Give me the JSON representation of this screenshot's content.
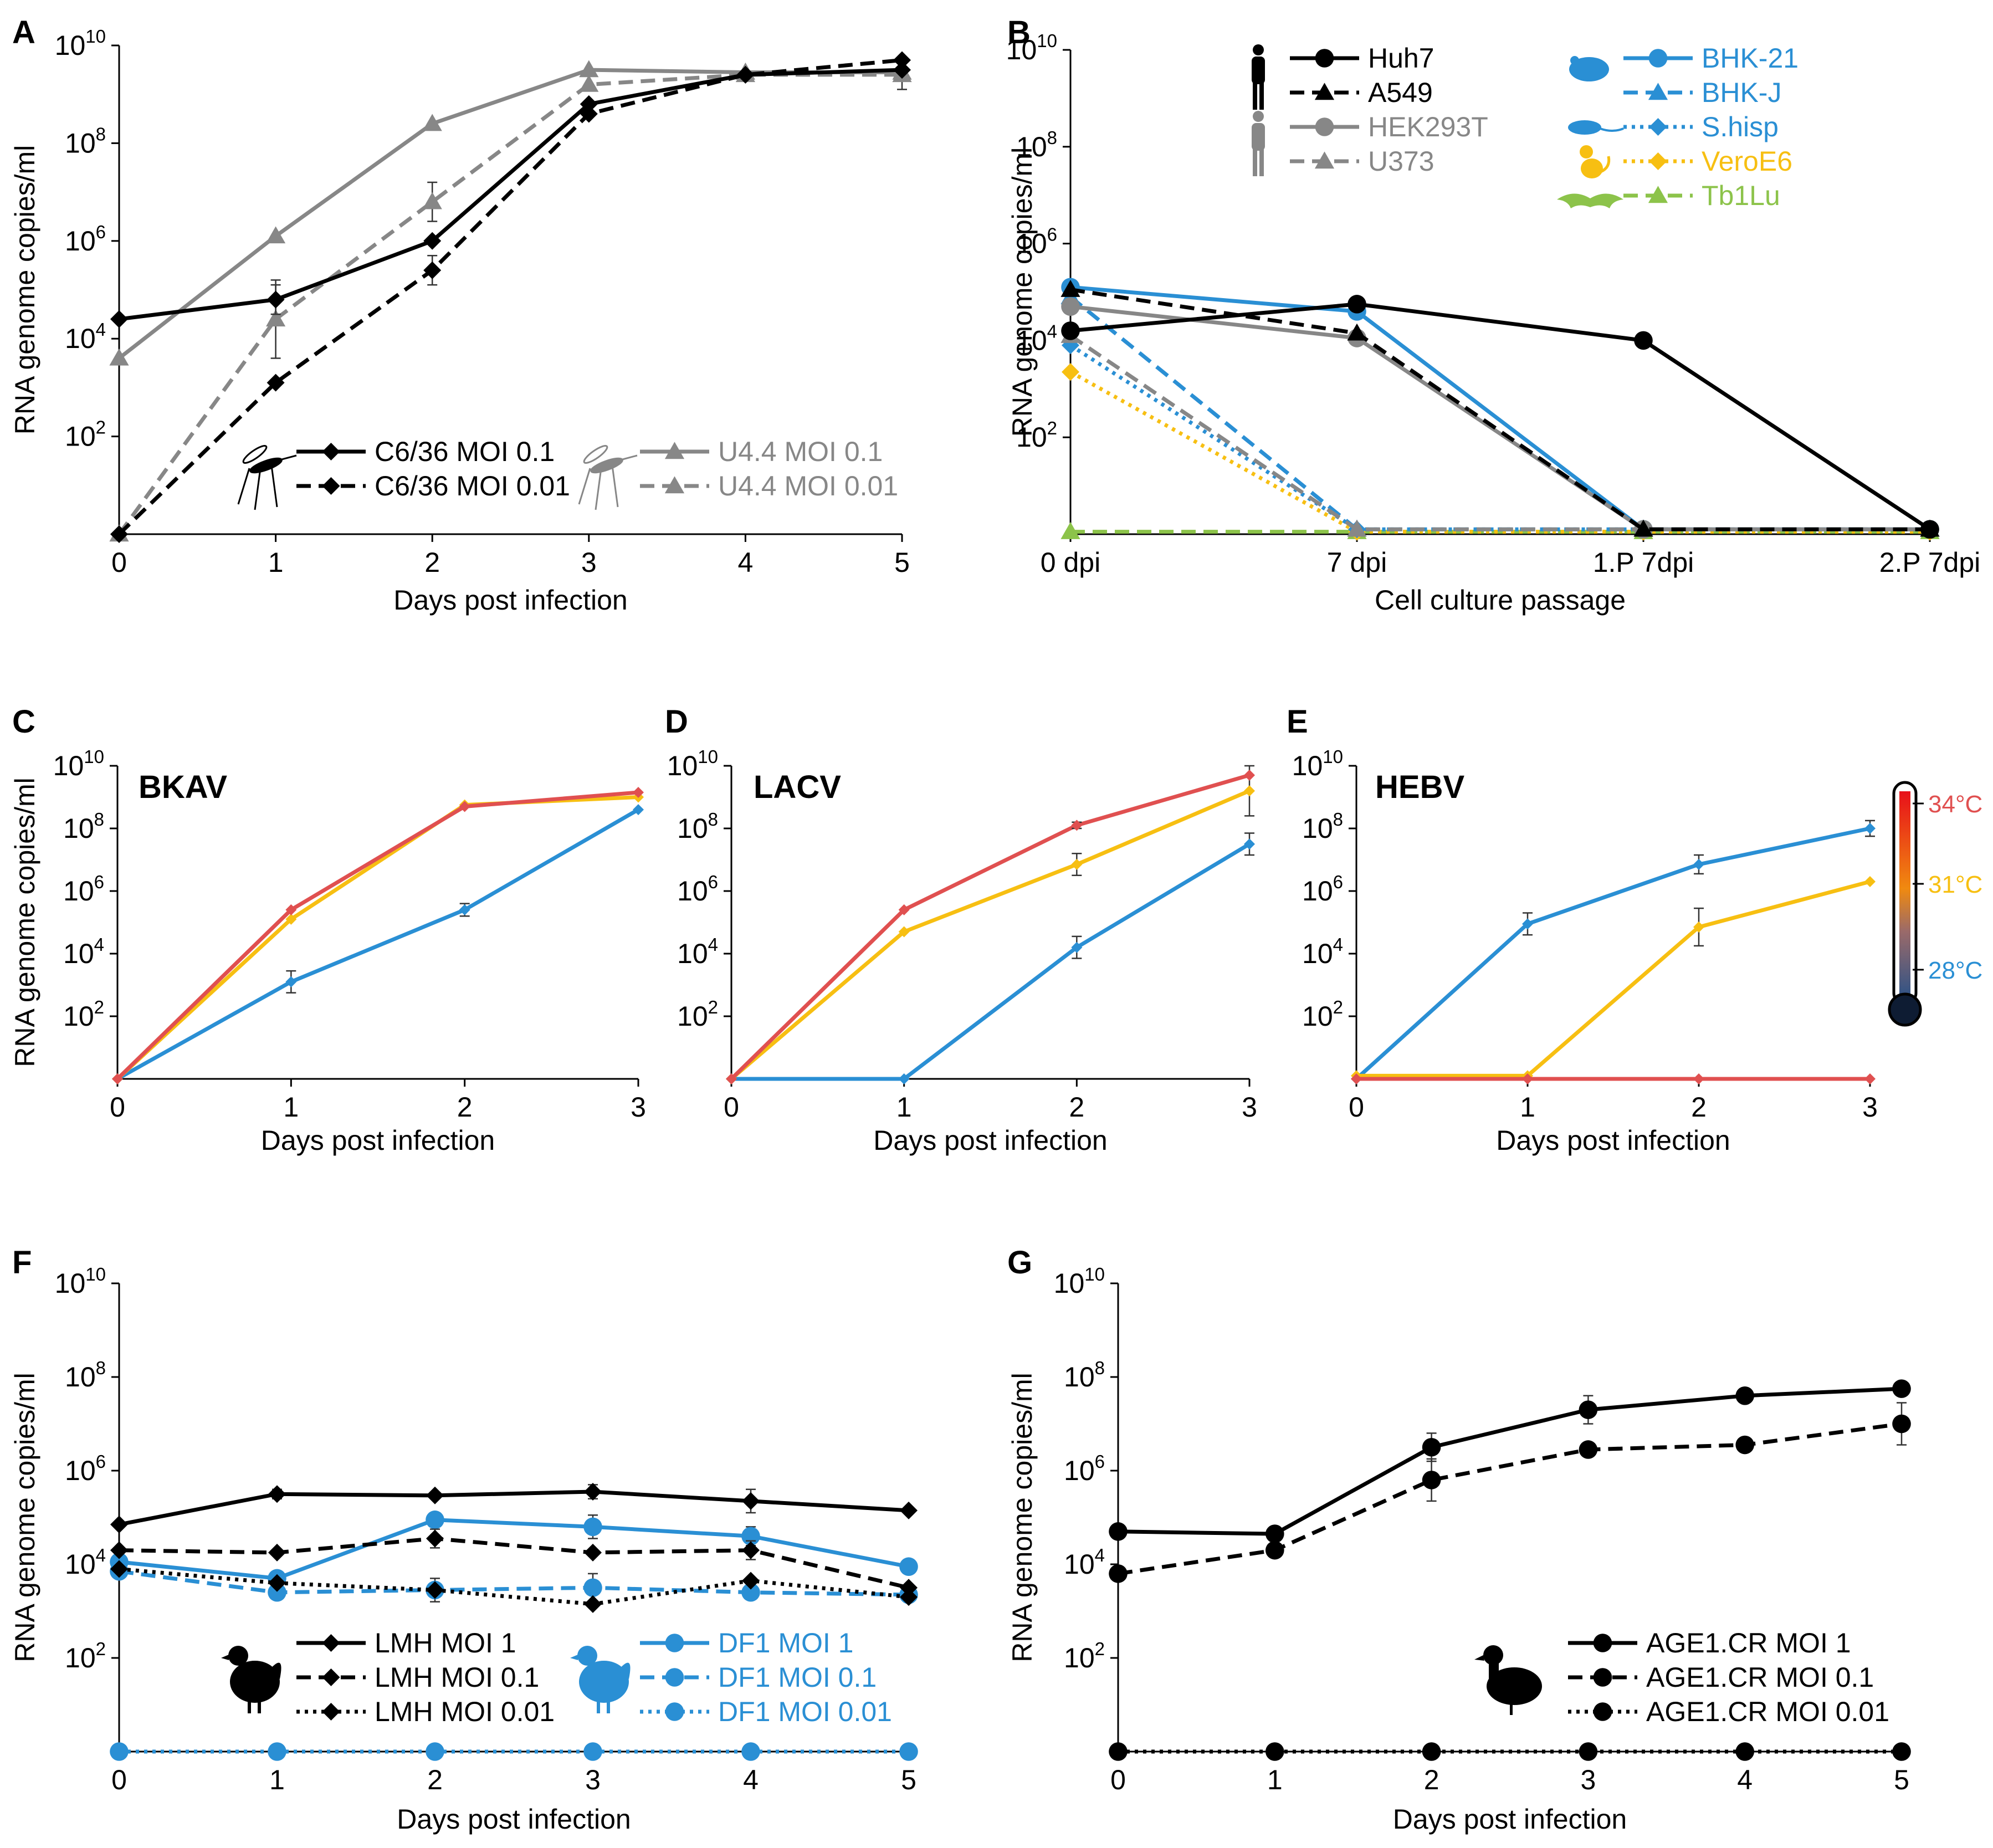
{
  "colors": {
    "black": "#000000",
    "gray": "#878787",
    "blue": "#2a8fd4",
    "yellow": "#f7bf12",
    "green": "#8cc34a",
    "red": "#e05050"
  },
  "chart_data": [
    {
      "id": "A",
      "panel_label": "A",
      "type": "line",
      "title": "",
      "xlabel": "Days post infection",
      "ylabel": "RNA genome copies/ml",
      "x_categories": [
        "0",
        "1",
        "2",
        "3",
        "4",
        "5"
      ],
      "y_scale": "log10",
      "ylim_exp": [
        0,
        10
      ],
      "y_tick_exponents": [
        2,
        4,
        6,
        8,
        10
      ],
      "series": [
        {
          "name": "C6/36 MOI 0.1",
          "color": "black",
          "dash": "solid",
          "marker": "diamond",
          "values_log10": [
            4.4,
            4.8,
            6.0,
            8.8,
            9.4,
            9.5
          ],
          "err_log10": [
            0,
            0.3,
            0,
            0,
            0,
            0
          ]
        },
        {
          "name": "C6/36 MOI 0.01",
          "color": "black",
          "dash": "dashed",
          "marker": "diamond",
          "values_log10": [
            0,
            3.1,
            5.4,
            8.6,
            9.4,
            9.7
          ],
          "err_log10": [
            0,
            0,
            0.3,
            0,
            0,
            0
          ]
        },
        {
          "name": "U4.4 MOI 0.1",
          "color": "gray",
          "dash": "solid",
          "marker": "triangle",
          "values_log10": [
            3.6,
            6.1,
            8.4,
            9.5,
            9.45,
            9.45
          ],
          "err_log10": [
            0,
            0,
            0,
            0,
            0,
            0
          ]
        },
        {
          "name": "U4.4 MOI 0.01",
          "color": "gray",
          "dash": "dashed",
          "marker": "triangle",
          "values_log10": [
            0,
            4.4,
            6.8,
            9.2,
            9.4,
            9.4
          ],
          "err_log10": [
            0,
            0.8,
            0.4,
            0,
            0,
            0.3
          ]
        }
      ]
    },
    {
      "id": "B",
      "panel_label": "B",
      "type": "line",
      "title": "",
      "xlabel": "Cell culture passage",
      "ylabel": "RNA genome copies/ml",
      "x_categories": [
        "0 dpi",
        "7 dpi",
        "1.P 7dpi",
        "2.P 7dpi"
      ],
      "y_scale": "log10",
      "ylim_exp": [
        0,
        10
      ],
      "y_tick_exponents": [
        2,
        4,
        6,
        8,
        10
      ],
      "series": [
        {
          "name": "Huh7",
          "color": "black",
          "dash": "solid",
          "marker": "circle",
          "values_log10": [
            4.2,
            4.75,
            4.0,
            0.1
          ]
        },
        {
          "name": "A549",
          "color": "black",
          "dash": "dashed",
          "marker": "triangle",
          "values_log10": [
            5.05,
            4.15,
            0.1,
            0.1
          ]
        },
        {
          "name": "HEK293T",
          "color": "gray",
          "dash": "solid",
          "marker": "circle",
          "values_log10": [
            4.7,
            4.05,
            0.1,
            0.1
          ]
        },
        {
          "name": "U373",
          "color": "gray",
          "dash": "dashed",
          "marker": "triangle",
          "values_log10": [
            4.1,
            0.1,
            0.1,
            0.1
          ]
        },
        {
          "name": "BHK-21",
          "color": "blue",
          "dash": "solid",
          "marker": "circle",
          "values_log10": [
            5.1,
            4.6,
            0.1,
            0.1
          ]
        },
        {
          "name": "BHK-J",
          "color": "blue",
          "dash": "dashed",
          "marker": "triangle",
          "values_log10": [
            4.9,
            0.1,
            0.1,
            0.1
          ]
        },
        {
          "name": "S.hisp",
          "color": "blue",
          "dash": "dotted",
          "marker": "diamond",
          "values_log10": [
            3.9,
            0.1,
            0.1,
            0.1
          ]
        },
        {
          "name": "VeroE6",
          "color": "yellow",
          "dash": "dotted",
          "marker": "diamond",
          "values_log10": [
            3.35,
            0.05,
            0.05,
            0.05
          ]
        },
        {
          "name": "Tb1Lu",
          "color": "green",
          "dash": "dashed",
          "marker": "triangle",
          "values_log10": [
            0.05,
            0.05,
            0.05,
            0.05
          ]
        }
      ]
    },
    {
      "id": "C",
      "panel_label": "C",
      "type": "line",
      "title": "BKAV",
      "xlabel": "Days post infection",
      "ylabel": "RNA genome copies/ml",
      "x_categories": [
        "0",
        "1",
        "2",
        "3"
      ],
      "y_scale": "log10",
      "ylim_exp": [
        0,
        10
      ],
      "y_tick_exponents": [
        2,
        4,
        6,
        8,
        10
      ],
      "series": [
        {
          "name": "34°C",
          "color": "red",
          "dash": "solid",
          "marker": "diamond",
          "values_log10": [
            0,
            5.4,
            8.7,
            9.15
          ],
          "err_log10": [
            0,
            0,
            0,
            0
          ]
        },
        {
          "name": "31°C",
          "color": "yellow",
          "dash": "solid",
          "marker": "diamond",
          "values_log10": [
            0,
            5.1,
            8.75,
            9.0
          ],
          "err_log10": [
            0,
            0,
            0,
            0
          ]
        },
        {
          "name": "28°C",
          "color": "blue",
          "dash": "solid",
          "marker": "diamond",
          "values_log10": [
            0,
            3.1,
            5.4,
            8.6
          ],
          "err_log10": [
            0,
            0.35,
            0.2,
            0
          ]
        }
      ]
    },
    {
      "id": "D",
      "panel_label": "D",
      "type": "line",
      "title": "LACV",
      "xlabel": "Days post infection",
      "ylabel": "RNA genome copies/ml",
      "x_categories": [
        "0",
        "1",
        "2",
        "3"
      ],
      "y_scale": "log10",
      "ylim_exp": [
        0,
        10
      ],
      "y_tick_exponents": [
        2,
        4,
        6,
        8,
        10
      ],
      "series": [
        {
          "name": "34°C",
          "color": "red",
          "dash": "solid",
          "marker": "diamond",
          "values_log10": [
            0,
            5.4,
            8.1,
            9.7
          ],
          "err_log10": [
            0,
            0,
            0.1,
            0
          ]
        },
        {
          "name": "31°C",
          "color": "yellow",
          "dash": "solid",
          "marker": "diamond",
          "values_log10": [
            0,
            4.7,
            6.85,
            9.2
          ],
          "err_log10": [
            0,
            0,
            0.35,
            0.8
          ]
        },
        {
          "name": "28°C",
          "color": "blue",
          "dash": "solid",
          "marker": "diamond",
          "values_log10": [
            0,
            0,
            4.2,
            7.5
          ],
          "err_log10": [
            0,
            0,
            0.35,
            0.35
          ]
        }
      ]
    },
    {
      "id": "E",
      "panel_label": "E",
      "type": "line",
      "title": "HEBV",
      "xlabel": "Days post infection",
      "ylabel": "RNA genome copies/ml",
      "x_categories": [
        "0",
        "1",
        "2",
        "3"
      ],
      "y_scale": "log10",
      "ylim_exp": [
        0,
        10
      ],
      "y_tick_exponents": [
        2,
        4,
        6,
        8,
        10
      ],
      "series": [
        {
          "name": "34°C",
          "color": "red",
          "dash": "solid",
          "marker": "diamond",
          "values_log10": [
            0,
            0,
            0,
            0
          ],
          "err_log10": [
            0,
            0,
            0,
            0
          ]
        },
        {
          "name": "31°C",
          "color": "yellow",
          "dash": "solid",
          "marker": "diamond",
          "values_log10": [
            0.1,
            0.1,
            4.85,
            6.3
          ],
          "err_log10": [
            0,
            0,
            0.6,
            0
          ]
        },
        {
          "name": "28°C",
          "color": "blue",
          "dash": "solid",
          "marker": "diamond",
          "values_log10": [
            0,
            4.95,
            6.85,
            8.0
          ],
          "err_log10": [
            0,
            0.35,
            0.3,
            0.25
          ]
        }
      ]
    },
    {
      "id": "F",
      "panel_label": "F",
      "type": "line",
      "title": "",
      "xlabel": "Days post infection",
      "ylabel": "RNA genome copies/ml",
      "x_categories": [
        "0",
        "1",
        "2",
        "3",
        "4",
        "5"
      ],
      "y_scale": "log10",
      "ylim_exp": [
        0,
        10
      ],
      "y_tick_exponents": [
        2,
        4,
        6,
        8,
        10
      ],
      "series": [
        {
          "name": "LMH MOI 1",
          "color": "black",
          "dash": "solid",
          "marker": "diamond",
          "values_log10": [
            4.85,
            5.5,
            5.47,
            5.55,
            5.35,
            5.15
          ],
          "err_log10": [
            0,
            0.1,
            0,
            0.15,
            0.25,
            0
          ]
        },
        {
          "name": "LMH MOI 0.1",
          "color": "black",
          "dash": "dashed",
          "marker": "diamond",
          "values_log10": [
            4.3,
            4.25,
            4.55,
            4.25,
            4.3,
            3.5
          ],
          "err_log10": [
            0,
            0,
            0.2,
            0,
            0.2,
            0
          ]
        },
        {
          "name": "LMH MOI 0.01",
          "color": "black",
          "dash": "dotted",
          "marker": "diamond",
          "values_log10": [
            3.9,
            3.6,
            3.45,
            3.15,
            3.65,
            3.3
          ],
          "err_log10": [
            0,
            0,
            0,
            0,
            0,
            0
          ]
        },
        {
          "name": "DF1 MOI 1",
          "color": "blue",
          "dash": "solid",
          "marker": "circle",
          "values_log10": [
            4.05,
            3.7,
            4.95,
            4.8,
            4.6,
            3.95
          ],
          "err_log10": [
            0,
            0,
            0,
            0.25,
            0.2,
            0
          ]
        },
        {
          "name": "DF1 MOI 0.1",
          "color": "blue",
          "dash": "dashed",
          "marker": "circle",
          "values_log10": [
            3.85,
            3.4,
            3.45,
            3.5,
            3.4,
            3.35
          ],
          "err_log10": [
            0,
            0,
            0.25,
            0.3,
            0,
            0
          ]
        },
        {
          "name": "DF1 MOI 0.01",
          "color": "blue",
          "dash": "dotted",
          "marker": "circle",
          "values_log10": [
            0,
            0,
            0,
            0,
            0,
            0
          ],
          "err_log10": [
            0,
            0,
            0,
            0,
            0,
            0
          ]
        }
      ]
    },
    {
      "id": "G",
      "panel_label": "G",
      "type": "line",
      "title": "",
      "xlabel": "Days post infection",
      "ylabel": "RNA genome copies/ml",
      "x_categories": [
        "0",
        "1",
        "2",
        "3",
        "4",
        "5"
      ],
      "y_scale": "log10",
      "ylim_exp": [
        0,
        10
      ],
      "y_tick_exponents": [
        2,
        4,
        6,
        8,
        10
      ],
      "series": [
        {
          "name": "AGE1.CR MOI 1",
          "color": "black",
          "dash": "solid",
          "marker": "circle",
          "values_log10": [
            4.7,
            4.65,
            6.5,
            7.3,
            7.6,
            7.75
          ],
          "err_log10": [
            0,
            0,
            0.3,
            0.3,
            0,
            0
          ]
        },
        {
          "name": "AGE1.CR MOI 0.1",
          "color": "black",
          "dash": "dashed",
          "marker": "circle",
          "values_log10": [
            3.8,
            4.3,
            5.8,
            6.45,
            6.55,
            7.0
          ],
          "err_log10": [
            0,
            0,
            0.45,
            0,
            0,
            0.45
          ]
        },
        {
          "name": "AGE1.CR MOI 0.01",
          "color": "black",
          "dash": "dotted",
          "marker": "circle",
          "values_log10": [
            0,
            0,
            0,
            0,
            0,
            0
          ],
          "err_log10": [
            0,
            0,
            0,
            0,
            0,
            0
          ]
        }
      ]
    }
  ],
  "legends": {
    "A": {
      "rows": [
        {
          "label": "C6/36 MOI 0.1",
          "series": 0
        },
        {
          "label": "C6/36 MOI 0.01",
          "series": 1
        },
        {
          "label": "U4.4 MOI 0.1",
          "series": 2
        },
        {
          "label": "U4.4 MOI 0.01",
          "series": 3
        }
      ]
    },
    "B": {
      "rows": [
        {
          "label": "Huh7",
          "series": 0
        },
        {
          "label": "A549",
          "series": 1
        },
        {
          "label": "HEK293T",
          "series": 2
        },
        {
          "label": "U373",
          "series": 3
        },
        {
          "label": "BHK-21",
          "series": 4
        },
        {
          "label": "BHK-J",
          "series": 5
        },
        {
          "label": "S.hisp",
          "series": 6
        },
        {
          "label": "VeroE6",
          "series": 7
        },
        {
          "label": "Tb1Lu",
          "series": 8
        }
      ]
    },
    "F": {
      "rows": [
        {
          "label": "LMH MOI 1",
          "series": 0
        },
        {
          "label": "LMH MOI 0.1",
          "series": 1
        },
        {
          "label": "LMH MOI 0.01",
          "series": 2
        },
        {
          "label": "DF1 MOI 1",
          "series": 3
        },
        {
          "label": "DF1 MOI 0.1",
          "series": 4
        },
        {
          "label": "DF1 MOI 0.01",
          "series": 5
        }
      ]
    },
    "G": {
      "rows": [
        {
          "label": "AGE1.CR MOI 1",
          "series": 0
        },
        {
          "label": "AGE1.CR MOI 0.1",
          "series": 1
        },
        {
          "label": "AGE1.CR MOI 0.01",
          "series": 2
        }
      ]
    }
  },
  "temperature_scale": {
    "labels": [
      "34°C",
      "31°C",
      "28°C"
    ],
    "colors": [
      "red",
      "yellow",
      "blue"
    ]
  },
  "icons": {
    "mosquito": "mosquito-icon",
    "human": "human-silhouette-icon",
    "rodent": "rodent-icon",
    "shrew": "shrew-icon",
    "monkey": "monkey-icon",
    "bat": "bat-icon",
    "chicken": "chicken-icon",
    "duck": "duck-icon",
    "thermometer": "thermometer-icon"
  }
}
